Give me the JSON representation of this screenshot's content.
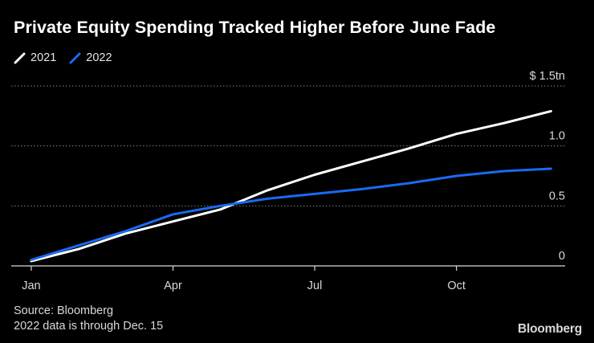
{
  "title": "Private Equity Spending Tracked Higher Before June Fade",
  "legend": [
    {
      "label": "2021",
      "color": "#ffffff"
    },
    {
      "label": "2022",
      "color": "#1a6af2"
    }
  ],
  "footer": {
    "source": "Source: Bloomberg",
    "note": "2022 data is through Dec. 15"
  },
  "brand": "Bloomberg",
  "chart_data": {
    "type": "line",
    "title": "Private Equity Spending Tracked Higher Before June Fade",
    "xlabel": "",
    "ylabel": "$ tn",
    "x_ticks": [
      {
        "label": "Jan",
        "x": 1
      },
      {
        "label": "Apr",
        "x": 4
      },
      {
        "label": "Jul",
        "x": 7
      },
      {
        "label": "Oct",
        "x": 10
      }
    ],
    "xlim": [
      0.95,
      12.3
    ],
    "y_ticks": [
      {
        "label": "0",
        "y": 0
      },
      {
        "label": "0.5",
        "y": 0.5
      },
      {
        "label": "1.0",
        "y": 1.0
      },
      {
        "label": "$ 1.5tn",
        "y": 1.5
      }
    ],
    "ylim": [
      0,
      1.5
    ],
    "grid": true,
    "series": [
      {
        "name": "2021",
        "color": "#ffffff",
        "x": [
          1,
          2,
          3,
          4,
          5,
          6,
          7,
          8,
          9,
          10,
          11,
          12
        ],
        "values": [
          0.04,
          0.14,
          0.27,
          0.37,
          0.47,
          0.63,
          0.76,
          0.87,
          0.98,
          1.1,
          1.19,
          1.29
        ]
      },
      {
        "name": "2022",
        "color": "#1a6af2",
        "x": [
          1,
          2,
          3,
          4,
          5,
          6,
          7,
          8,
          9,
          10,
          11,
          12
        ],
        "values": [
          0.05,
          0.17,
          0.29,
          0.43,
          0.5,
          0.56,
          0.6,
          0.64,
          0.69,
          0.75,
          0.79,
          0.81
        ]
      }
    ]
  }
}
